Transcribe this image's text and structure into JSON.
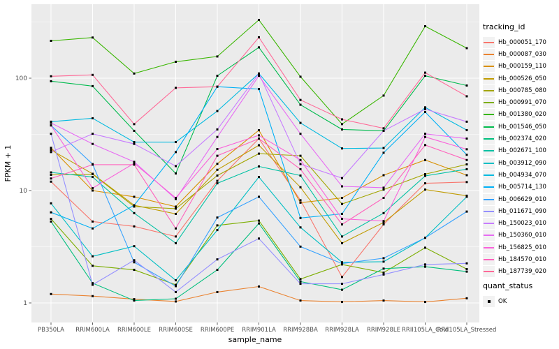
{
  "figure": {
    "x_axis_title": "sample_name",
    "y_axis_title": "FPKM + 1",
    "legend_tracking_title": "tracking_id",
    "legend_quant_title": "quant_status",
    "legend_quant_item": "OK"
  },
  "chart_data": {
    "type": "line",
    "title": "",
    "xlabel": "sample_name",
    "ylabel": "FPKM + 1",
    "y_scale": "log10",
    "ylim": [
      0.93,
      460
    ],
    "y_ticks": [
      1,
      10,
      100
    ],
    "y_minor_ticks": [
      3.162,
      31.62,
      316.2
    ],
    "grid": "white-on-gray",
    "panel_bg": "#EBEBEB",
    "legend_position": "right",
    "point_marker": "filled-black-square",
    "point_legend_label": "OK",
    "categories": [
      "PB350LA",
      "RRIM600LA",
      "RRIM600LE",
      "RRIM600SE",
      "RRIM600PE",
      "RRIM901LA",
      "RRIM928BA",
      "RRIM928LA",
      "RRIM928LE",
      "RRII105LA_Cold",
      "RRII105LA_Stressed"
    ],
    "series": [
      {
        "name": "Hb_000051_170",
        "color": "#F8766D",
        "values": [
          12,
          5.3,
          4.8,
          3.9,
          12.2,
          29,
          8.2,
          1.7,
          5.0,
          11.6,
          11.9
        ]
      },
      {
        "name": "Hb_000087_030",
        "color": "#EA8331",
        "values": [
          1.2,
          1.15,
          1.08,
          1.03,
          1.25,
          1.4,
          1.05,
          1.02,
          1.05,
          1.02,
          1.1
        ]
      },
      {
        "name": "Hb_000159_110",
        "color": "#D89000",
        "values": [
          24,
          10,
          8.8,
          7.2,
          17.3,
          34.4,
          7.8,
          8.6,
          13.7,
          18.7,
          13.7
        ]
      },
      {
        "name": "Hb_000526_050",
        "color": "#C09B00",
        "values": [
          23,
          14.1,
          7.4,
          6.2,
          15.3,
          25.3,
          10.7,
          3.4,
          5.2,
          10.2,
          9.0
        ]
      },
      {
        "name": "Hb_000785_080",
        "color": "#A3A500",
        "values": [
          13.8,
          14,
          7.2,
          6.9,
          13.6,
          21.3,
          20.4,
          7.6,
          10.2,
          14,
          17.1
        ]
      },
      {
        "name": "Hb_000991_070",
        "color": "#7CAE00",
        "values": [
          5.6,
          2.14,
          1.97,
          1.45,
          4.9,
          5.4,
          1.63,
          2.2,
          1.86,
          3.1,
          2.0
        ]
      },
      {
        "name": "Hb_001380_020",
        "color": "#39B600",
        "values": [
          215,
          230,
          110,
          140,
          156,
          330,
          103,
          39,
          70,
          290,
          185
        ]
      },
      {
        "name": "Hb_001546_050",
        "color": "#00BB4E",
        "values": [
          94,
          85,
          34,
          14.2,
          105,
          188,
          58,
          35,
          34,
          105,
          86
        ]
      },
      {
        "name": "Hb_002374_020",
        "color": "#00BF7D",
        "values": [
          5.3,
          1.5,
          1.05,
          1.09,
          1.97,
          5.1,
          1.55,
          1.31,
          2.02,
          2.1,
          1.9
        ]
      },
      {
        "name": "Hb_002671_100",
        "color": "#00C1A3",
        "values": [
          14.5,
          13.2,
          6.3,
          3.4,
          11.6,
          16.4,
          13.6,
          3.9,
          6.3,
          13.5,
          15.5
        ]
      },
      {
        "name": "Hb_003912_090",
        "color": "#00BFC4",
        "values": [
          7.7,
          2.6,
          3.2,
          1.59,
          4.45,
          13.2,
          4.7,
          2.3,
          2.33,
          3.8,
          8.8
        ]
      },
      {
        "name": "Hb_004934_070",
        "color": "#00BAE0",
        "values": [
          41,
          44,
          27,
          27,
          51,
          110,
          40,
          23.7,
          23.9,
          55,
          34.5
        ]
      },
      {
        "name": "Hb_005714_130",
        "color": "#00B0F6",
        "values": [
          6.4,
          4.6,
          7.4,
          22,
          84,
          80,
          5.7,
          6.2,
          21.7,
          50,
          20.8
        ]
      },
      {
        "name": "Hb_006629_010",
        "color": "#35A2FF",
        "values": [
          38,
          17.2,
          2.3,
          1.41,
          5.75,
          8.8,
          3.17,
          2.24,
          2.5,
          3.8,
          6.5
        ]
      },
      {
        "name": "Hb_011671_090",
        "color": "#9590FF",
        "values": [
          32,
          1.45,
          2.4,
          1.25,
          2.44,
          3.74,
          1.48,
          1.48,
          1.79,
          2.2,
          2.25
        ]
      },
      {
        "name": "Hb_150023_010",
        "color": "#C77CFF",
        "values": [
          22,
          32,
          26,
          16.5,
          35,
          110,
          17.2,
          12.9,
          34,
          53,
          41
        ]
      },
      {
        "name": "Hb_150360_010",
        "color": "#E76BF3",
        "values": [
          40,
          26,
          18,
          8.4,
          30,
          105,
          32,
          10.9,
          10.6,
          32,
          29
        ]
      },
      {
        "name": "Hb_156825_010",
        "color": "#FA62DB",
        "values": [
          38,
          10.5,
          17.5,
          8.6,
          23.4,
          31,
          18.7,
          5.6,
          5.35,
          30,
          23.3
        ]
      },
      {
        "name": "Hb_184570_010",
        "color": "#FF62BC",
        "values": [
          12.8,
          17,
          17,
          4.6,
          20.4,
          29,
          15.5,
          5.0,
          8.6,
          25.4,
          18.7
        ]
      },
      {
        "name": "Hb_187739_020",
        "color": "#FF6A98",
        "values": [
          104,
          107,
          39,
          82,
          84,
          231,
          64,
          43,
          35.8,
          112,
          69
        ]
      }
    ]
  }
}
